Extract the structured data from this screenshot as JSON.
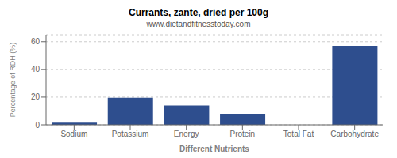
{
  "chart_data": {
    "type": "bar",
    "title": "Currants, zante, dried per 100g",
    "subtitle": "www.dietandfitnesstoday.com",
    "xlabel": "Different Nutrients",
    "ylabel": "Percentage of RDH (%)",
    "categories": [
      "Sodium",
      "Potassium",
      "Energy",
      "Protein",
      "Total Fat",
      "Carbohydrate"
    ],
    "values": [
      1.5,
      19.5,
      14.0,
      8.0,
      0.0,
      57.0
    ],
    "color": "#2e4e8e",
    "ylim": [
      0,
      65
    ],
    "yticks": [
      0,
      20,
      40,
      60
    ],
    "grid": true
  }
}
